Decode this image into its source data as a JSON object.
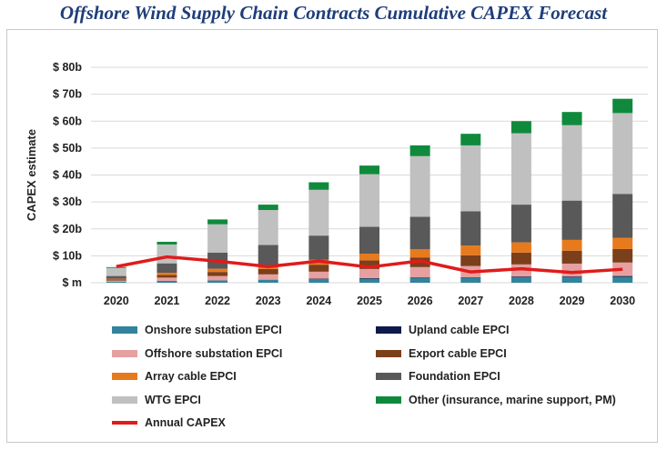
{
  "title": "Offshore Wind Supply Chain Contracts Cumulative CAPEX Forecast",
  "chart_data": {
    "type": "bar",
    "stacked": true,
    "title": "Offshore Wind Supply Chain Contracts Cumulative CAPEX Forecast",
    "ylabel": "CAPEX estimate",
    "xlabel": "",
    "ylim": [
      0,
      80
    ],
    "yticks": [
      0,
      10,
      20,
      30,
      40,
      50,
      60,
      70,
      80
    ],
    "ytick_labels": [
      "$ m",
      "$ 10b",
      "$ 20b",
      "$ 30b",
      "$ 40b",
      "$ 50b",
      "$ 60b",
      "$ 70b",
      "$ 80b"
    ],
    "grid": true,
    "legend_position": "bottom",
    "categories": [
      "2020",
      "2021",
      "2022",
      "2023",
      "2024",
      "2025",
      "2026",
      "2027",
      "2028",
      "2029",
      "2030"
    ],
    "series": [
      {
        "name": "Onshore substation EPCI",
        "color": "#31849b",
        "values": [
          0.3,
          0.6,
          0.8,
          1.0,
          1.3,
          1.5,
          1.8,
          1.8,
          2.0,
          2.0,
          2.2
        ]
      },
      {
        "name": "Upland cable EPCI",
        "color": "#0d1a4a",
        "values": [
          0.1,
          0.1,
          0.1,
          0.1,
          0.2,
          0.2,
          0.2,
          0.2,
          0.3,
          0.3,
          0.3
        ]
      },
      {
        "name": "Offshore substation EPCI",
        "color": "#e6a0a0",
        "values": [
          0.4,
          1.2,
          1.6,
          2.0,
          2.6,
          3.4,
          3.8,
          4.2,
          4.5,
          4.8,
          5.0
        ]
      },
      {
        "name": "Export cable EPCI",
        "color": "#7b3f1c",
        "values": [
          0.4,
          1.0,
          1.5,
          2.0,
          2.6,
          3.2,
          3.6,
          4.0,
          4.4,
          4.8,
          5.0
        ]
      },
      {
        "name": "Array cable EPCI",
        "color": "#e87a1e",
        "values": [
          0.3,
          0.8,
          1.2,
          1.4,
          1.8,
          2.5,
          3.0,
          3.6,
          3.8,
          4.0,
          4.2
        ]
      },
      {
        "name": "Foundation EPCI",
        "color": "#595959",
        "values": [
          1.0,
          3.5,
          6.0,
          7.5,
          9.0,
          10.0,
          12.1,
          12.7,
          14.0,
          14.6,
          16.3
        ]
      },
      {
        "name": "WTG EPCI",
        "color": "#c0c0c0",
        "values": [
          3.0,
          7.0,
          10.5,
          13.0,
          17.0,
          19.5,
          22.5,
          24.5,
          26.5,
          28.0,
          30.0
        ]
      },
      {
        "name": "Other (insurance, marine support, PM)",
        "color": "#0f8a3c",
        "values": [
          0.3,
          1.0,
          1.8,
          2.0,
          2.8,
          3.2,
          4.0,
          4.3,
          4.5,
          4.9,
          5.3
        ]
      }
    ],
    "line_series": {
      "name": "Annual CAPEX",
      "color": "#e01b1b",
      "values": [
        6.0,
        9.6,
        8.0,
        6.0,
        8.0,
        5.8,
        8.1,
        4.0,
        5.2,
        3.8,
        5.0
      ]
    }
  }
}
